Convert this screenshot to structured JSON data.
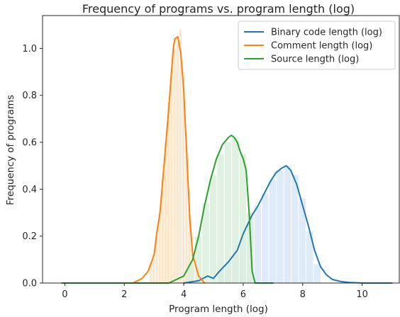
{
  "chart_data": {
    "type": "line",
    "title": "Frequency of programs vs. program length (log)",
    "xlabel": "Program length (log)",
    "ylabel": "Frequency of programs",
    "xlim": [
      -0.75,
      11.25
    ],
    "ylim": [
      0,
      1.14
    ],
    "xticks": [
      0,
      2,
      4,
      6,
      8,
      10
    ],
    "yticks": [
      0.0,
      0.2,
      0.4,
      0.6,
      0.8,
      1.0
    ],
    "ytick_labels": [
      "0.0",
      "0.2",
      "0.4",
      "0.6",
      "0.8",
      "1.0"
    ],
    "grid": false,
    "legend_position": "top-right",
    "series": [
      {
        "name": "Binary code length (log)",
        "color": "#1f77b4",
        "hist_color": "#dbe8f8",
        "x": [
          4.0,
          4.5,
          4.8,
          5.0,
          5.2,
          5.5,
          5.8,
          6.0,
          6.3,
          6.5,
          6.7,
          6.9,
          7.1,
          7.3,
          7.45,
          7.6,
          7.8,
          8.0,
          8.2,
          8.4,
          8.6,
          8.8,
          9.0,
          9.3,
          9.6,
          10.0,
          11.0
        ],
        "y": [
          0.0,
          0.01,
          0.03,
          0.02,
          0.05,
          0.09,
          0.14,
          0.21,
          0.29,
          0.33,
          0.38,
          0.43,
          0.47,
          0.49,
          0.5,
          0.48,
          0.42,
          0.33,
          0.24,
          0.14,
          0.07,
          0.035,
          0.015,
          0.006,
          0.002,
          0.0,
          0.0
        ],
        "hist_x": [
          5.25,
          5.5,
          5.75,
          6.0,
          6.25,
          6.5,
          6.75,
          7.0,
          7.25,
          7.5,
          7.75,
          8.0,
          8.25,
          8.5
        ],
        "hist_y": [
          0.06,
          0.09,
          0.13,
          0.19,
          0.26,
          0.33,
          0.38,
          0.44,
          0.48,
          0.5,
          0.46,
          0.36,
          0.22,
          0.08
        ]
      },
      {
        "name": "Comment length (log)",
        "color": "#ff7f0e",
        "hist_color": "#fbe0c0",
        "x": [
          2.3,
          2.6,
          2.8,
          3.0,
          3.1,
          3.2,
          3.3,
          3.4,
          3.5,
          3.6,
          3.65,
          3.7,
          3.8,
          3.9,
          4.0,
          4.1,
          4.2,
          4.3,
          4.5,
          4.7
        ],
        "y": [
          0.0,
          0.02,
          0.05,
          0.12,
          0.22,
          0.3,
          0.45,
          0.6,
          0.75,
          0.92,
          1.0,
          1.04,
          1.05,
          0.98,
          0.82,
          0.55,
          0.28,
          0.12,
          0.03,
          0.0
        ],
        "hist_x": [
          2.9,
          3.0,
          3.1,
          3.2,
          3.3,
          3.4,
          3.5,
          3.6,
          3.7,
          3.8,
          3.9,
          4.0,
          4.1,
          4.2,
          4.3
        ],
        "hist_y": [
          0.08,
          0.12,
          0.2,
          0.3,
          0.45,
          0.6,
          0.77,
          0.9,
          1.0,
          1.03,
          1.08,
          0.9,
          0.6,
          0.3,
          0.12
        ]
      },
      {
        "name": "Source length (log)",
        "color": "#2ca02c",
        "hist_color": "#dcefdc",
        "x": [
          -0.1,
          0.5,
          3.5,
          4.0,
          4.3,
          4.5,
          4.7,
          4.9,
          5.1,
          5.3,
          5.5,
          5.6,
          5.7,
          5.8,
          5.9,
          6.0,
          6.1,
          6.2,
          6.3,
          6.4,
          7.0
        ],
        "y": [
          0.0,
          0.0,
          0.0,
          0.03,
          0.1,
          0.2,
          0.33,
          0.44,
          0.53,
          0.59,
          0.62,
          0.63,
          0.62,
          0.6,
          0.56,
          0.53,
          0.48,
          0.3,
          0.05,
          0.0,
          0.0
        ],
        "hist_x": [
          4.25,
          4.5,
          4.75,
          5.0,
          5.25,
          5.5,
          5.75,
          6.0,
          6.25
        ],
        "hist_y": [
          0.08,
          0.2,
          0.34,
          0.46,
          0.55,
          0.6,
          0.62,
          0.55,
          0.3
        ]
      }
    ]
  }
}
